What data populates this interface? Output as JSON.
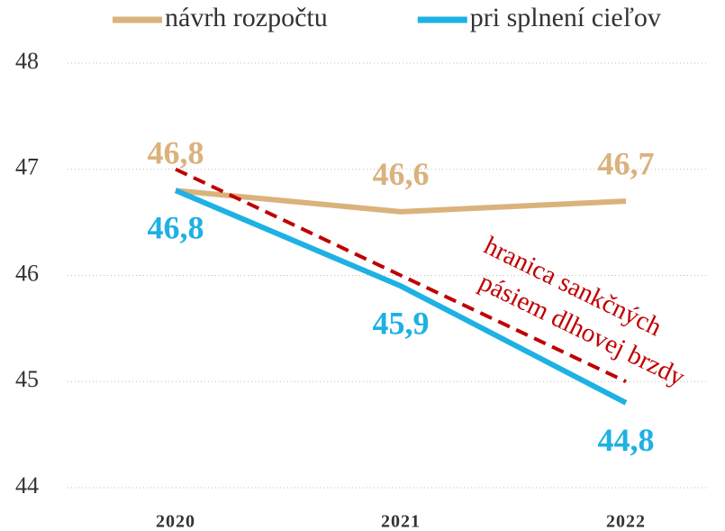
{
  "chart_data": {
    "type": "line",
    "categories": [
      "2020",
      "2021",
      "2022"
    ],
    "series": [
      {
        "name": "návrh rozpočtu",
        "color": "#dab27c",
        "values": [
          46.8,
          46.6,
          46.7
        ],
        "value_labels": [
          "46,8",
          "46,6",
          "46,7"
        ],
        "label_position": "above"
      },
      {
        "name": "pri splnení cieľov",
        "color": "#1eb1e3",
        "values": [
          46.8,
          45.9,
          44.8
        ],
        "value_labels": [
          "46,8",
          "45,9",
          "44,8"
        ],
        "label_position": "below"
      },
      {
        "color": "#c00000",
        "values": [
          47,
          46,
          45
        ],
        "dashed": true
      }
    ],
    "annotation": [
      "hranica sankčných",
      "pásiem dlhovej brzdy"
    ],
    "annotation_color": "#c00000",
    "ylim": [
      44,
      48
    ],
    "yticks": [
      44,
      45,
      46,
      47,
      48
    ],
    "grid": true,
    "legend": "top"
  }
}
